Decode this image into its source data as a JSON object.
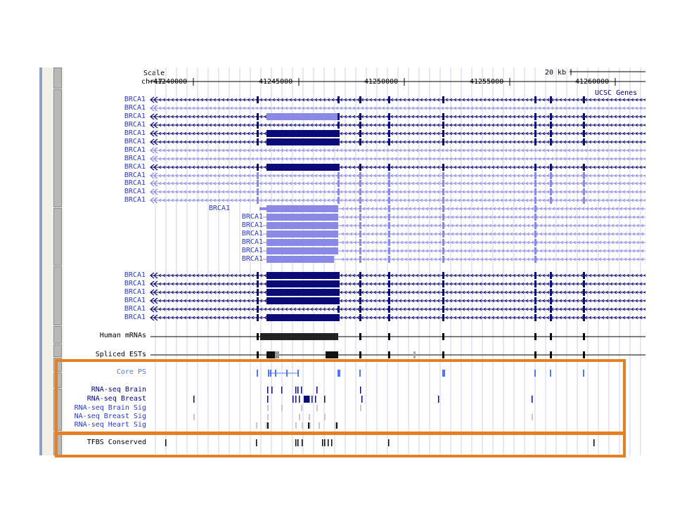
{
  "scale": {
    "scale_label": "Scale",
    "chrom_label": "chr17:",
    "kb_label": "20 kb"
  },
  "positions": [
    "41240000",
    "41245000",
    "41250000",
    "41255000",
    "41260000"
  ],
  "ucsc_genes_label": "UCSC Genes",
  "gene_name": "BRCA1",
  "tracks": {
    "human_mrnas": "Human mRNAs",
    "spliced_ests": "Spliced ESTs",
    "core_ps": "Core PS",
    "rnaseq_brain": "RNA-seq Brain",
    "rnaseq_breast": "RNA-seq Breast",
    "rnaseq_brain_sig": "RNA-seq Brain Sig",
    "rnaseq_breast_sig": "NA-seq Breast Sig",
    "rnaseq_heart_sig": "RNA-seq Heart Sig",
    "tfbs_conserved": "TFBS Conserved"
  },
  "colors": {
    "dark_navy": "#0a0a78",
    "light_purple": "#8a8ae6",
    "track_blue": "#2a39c8",
    "core_blue": "#4e75ff",
    "highlight_orange": "#e67e22",
    "guide_lines": "#cfcfee"
  }
}
